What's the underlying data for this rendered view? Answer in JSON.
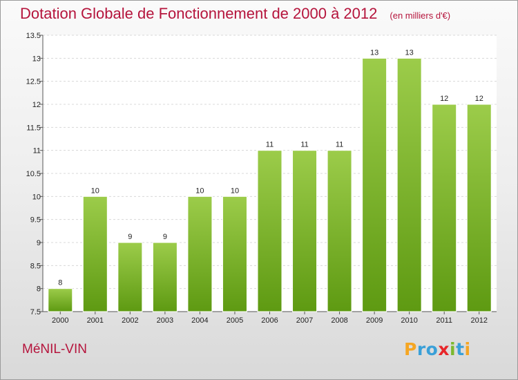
{
  "header": {
    "title": "Dotation Globale de Fonctionnement de 2000 à 2012",
    "subtitle": "(en milliers d'€)"
  },
  "footer": {
    "place": "MéNIL-VIN",
    "logo_letters": [
      {
        "ch": "P",
        "color": "#f5a623"
      },
      {
        "ch": "r",
        "color": "#3aa0d8"
      },
      {
        "ch": "o",
        "color": "#3aa0d8"
      },
      {
        "ch": "x",
        "color": "#e8262a"
      },
      {
        "ch": "i",
        "color": "#7cb82f"
      },
      {
        "ch": "t",
        "color": "#3aa0d8"
      },
      {
        "ch": "i",
        "color": "#f5a623"
      }
    ]
  },
  "colors": {
    "bar_top": "#9ccc4a",
    "bar_bottom": "#5e9a12",
    "bar_stroke": "#ffffff",
    "title": "#b5143c"
  },
  "chart_data": {
    "type": "bar",
    "title": "Dotation Globale de Fonctionnement de 2000 à 2012",
    "subtitle": "(en milliers d'€)",
    "xlabel": "",
    "ylabel": "",
    "categories": [
      "2000",
      "2001",
      "2002",
      "2003",
      "2004",
      "2005",
      "2006",
      "2007",
      "2008",
      "2009",
      "2010",
      "2011",
      "2012"
    ],
    "values": [
      8,
      10,
      9,
      9,
      10,
      10,
      11,
      11,
      11,
      13,
      13,
      12,
      12
    ],
    "ylim": [
      7.5,
      13.5
    ],
    "yticks": [
      7.5,
      8,
      8.5,
      9,
      9.5,
      10,
      10.5,
      11,
      11.5,
      12,
      12.5,
      13,
      13.5
    ],
    "ytick_labels": [
      "7.5",
      "8",
      "8.5",
      "9",
      "9.5",
      "10",
      "10.5",
      "11",
      "11.5",
      "12",
      "12.5",
      "13",
      "13.5"
    ],
    "grid": true,
    "legend": "none"
  }
}
